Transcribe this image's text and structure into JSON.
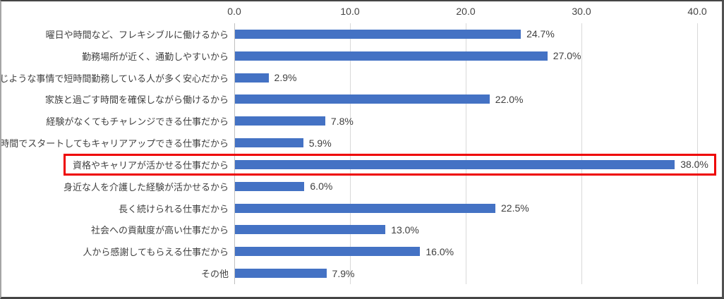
{
  "chart_data": {
    "type": "bar",
    "orientation": "horizontal",
    "title": "",
    "categories": [
      "曜日や時間など、フレキシブルに働けるから",
      "勤務場所が近く、通勤しやすいから",
      "同じような事情で短時間勤務している人が多く安心だから",
      "家族と過ごす時間を確保しながら働けるから",
      "経験がなくてもチャレンジできる仕事だから",
      "短時間でスタートしてもキャリアアップできる仕事だから",
      "資格やキャリアが活かせる仕事だから",
      "身近な人を介護した経験が活かせるから",
      "長く続けられる仕事だから",
      "社会への貢献度が高い仕事だから",
      "人から感謝してもらえる仕事だから",
      "その他"
    ],
    "values": [
      24.7,
      27.0,
      2.9,
      22.0,
      7.8,
      5.9,
      38.0,
      6.0,
      22.5,
      13.0,
      16.0,
      7.9
    ],
    "value_labels": [
      "24.7%",
      "27.0%",
      "2.9%",
      "22.0%",
      "7.8%",
      "5.9%",
      "38.0%",
      "6.0%",
      "22.5%",
      "13.0%",
      "16.0%",
      "7.9%"
    ],
    "x_ticks": [
      "0.0",
      "10.0",
      "20.0",
      "30.0",
      "40.0"
    ],
    "x_tick_values": [
      0,
      10,
      20,
      30,
      40
    ],
    "xlim": [
      0,
      40
    ],
    "xlabel": "",
    "ylabel": "",
    "grid": true,
    "axis_position": "top",
    "bar_color": "#4472c4",
    "gridline_color": "#d9d9d9",
    "axis_line_color": "#bfbfbf",
    "text_color": "#3f3f3f",
    "highlighted_index": 6,
    "highlight_color": "#ee0000"
  }
}
